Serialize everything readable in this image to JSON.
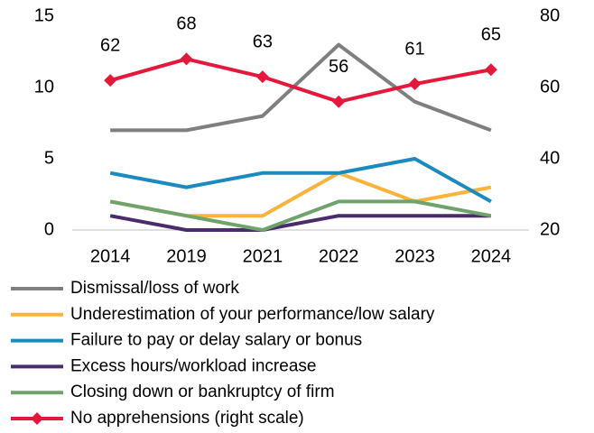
{
  "chart_data": {
    "type": "line",
    "categories": [
      "2014",
      "2019",
      "2021",
      "2022",
      "2023",
      "2024"
    ],
    "ylim": [
      0,
      15
    ],
    "yticks": [
      0,
      5,
      10,
      15
    ],
    "y2lim": [
      20,
      80
    ],
    "y2ticks": [
      20,
      40,
      60,
      80
    ],
    "legend": "bottom",
    "series": [
      {
        "name": "Dismissal/loss of work",
        "color": "#7f7f7f",
        "values": [
          7,
          7,
          8,
          13,
          9,
          7
        ]
      },
      {
        "name": "Underestimation of your performance/low salary",
        "color": "#fbb33c",
        "values": [
          2,
          1,
          1,
          4,
          2,
          3
        ]
      },
      {
        "name": "Failure to pay or delay salary or bonus",
        "color": "#1b8bbf",
        "values": [
          4,
          3,
          4,
          4,
          5,
          2
        ]
      },
      {
        "name": "Excess hours/workload increase",
        "color": "#4a2b6c",
        "values": [
          1,
          0,
          0,
          1,
          1,
          1
        ]
      },
      {
        "name": "Closing down or bankruptcy of firm",
        "color": "#6ea36b",
        "values": [
          2,
          1,
          0,
          2,
          2,
          1
        ]
      },
      {
        "name": "No apprehensions (right scale)",
        "color": "#e5173b",
        "axis": "y2",
        "marker": "diamond",
        "data_labels": true,
        "values": [
          62,
          68,
          63,
          56,
          61,
          65
        ]
      }
    ]
  }
}
